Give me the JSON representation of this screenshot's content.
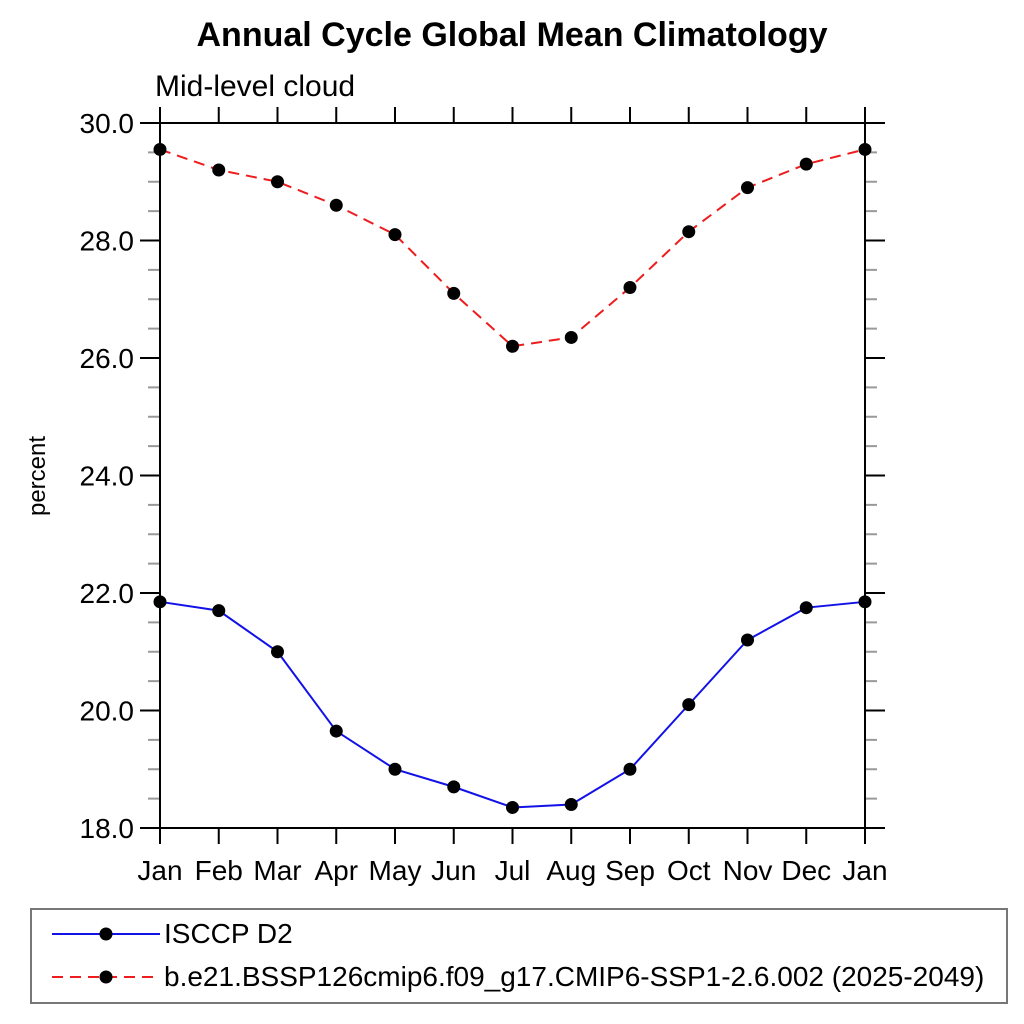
{
  "page_background": "#ffffff",
  "chart_data": {
    "type": "line",
    "title": "Annual Cycle Global Mean Climatology",
    "subtitle": "Mid-level cloud",
    "ylabel": "percent",
    "xlabel": "",
    "categories": [
      "Jan",
      "Feb",
      "Mar",
      "Apr",
      "May",
      "Jun",
      "Jul",
      "Aug",
      "Sep",
      "Oct",
      "Nov",
      "Dec",
      "Jan"
    ],
    "ylim": [
      18.0,
      30.0
    ],
    "ytick_major_values": [
      18,
      20,
      22,
      24,
      26,
      28,
      30
    ],
    "ytick_labels": [
      "18.0",
      "20.0",
      "22.0",
      "24.0",
      "26.0",
      "28.0",
      "30.0"
    ],
    "ytick_minor_step": 0.5,
    "grid": false,
    "legend_position": "bottom-left-box",
    "frame_color": "#000000",
    "minor_tick_color": "#999999",
    "marker_color": "#000000",
    "series": [
      {
        "name": "ISCCP D2",
        "color": "#1212e8",
        "style": "solid",
        "marker": "circle",
        "values": [
          21.85,
          21.7,
          21.0,
          19.65,
          19.0,
          18.7,
          18.35,
          18.4,
          19.0,
          20.1,
          21.2,
          21.75,
          21.85
        ]
      },
      {
        "name": "b.e21.BSSP126cmip6.f09_g17.CMIP6-SSP1-2.6.002 (2025-2049)",
        "color": "#ee1c1c",
        "style": "dashed",
        "marker": "circle",
        "values": [
          29.55,
          29.2,
          29.0,
          28.6,
          28.1,
          27.1,
          26.2,
          26.35,
          27.2,
          28.15,
          28.9,
          29.3,
          29.55
        ]
      }
    ]
  }
}
